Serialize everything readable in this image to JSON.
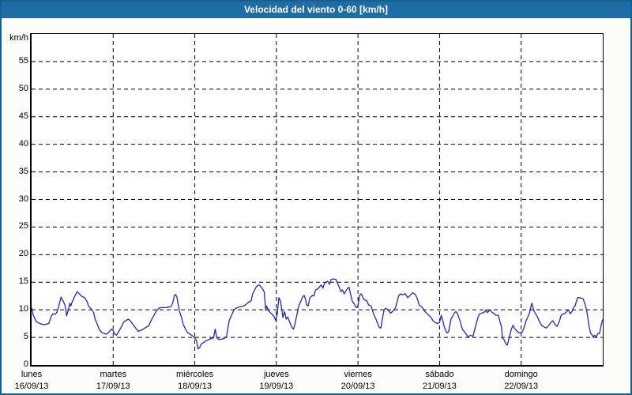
{
  "window": {
    "title": "Velocidad del viento 0-60 [km/h]"
  },
  "colors": {
    "titlebar_bg": "#1e6da4",
    "outer_border": "#16608f",
    "page_background": "#fcfdf8",
    "plot_background": "#ffffff",
    "grid": "#000000",
    "axis": "#000000",
    "line": "#2128b4",
    "title_text": "#ffffff",
    "label_text": "#000000"
  },
  "chart_data": {
    "type": "line",
    "title": "Velocidad del viento 0-60 [km/h]",
    "y_unit_label": "km/h",
    "ylim": [
      0,
      60
    ],
    "y_ticks": [
      0,
      5,
      10,
      15,
      20,
      25,
      30,
      35,
      40,
      45,
      50,
      55
    ],
    "xlim_days": [
      0,
      7
    ],
    "grid": "dashed",
    "legend": "none",
    "x_days": [
      {
        "name": "lunes",
        "date": "16/09/13"
      },
      {
        "name": "martes",
        "date": "17/09/13"
      },
      {
        "name": "miércoles",
        "date": "18/09/13"
      },
      {
        "name": "jueves",
        "date": "19/09/13"
      },
      {
        "name": "viernes",
        "date": "20/09/13"
      },
      {
        "name": "sábado",
        "date": "21/09/13"
      },
      {
        "name": "domingo",
        "date": "22/09/13"
      }
    ],
    "series": [
      {
        "name": "velocidad del viento",
        "color": "#2128b4",
        "x_unit": "days from 16/09/13 00:00",
        "y_unit": "km/h",
        "points": [
          [
            0.0,
            10.4
          ],
          [
            0.02,
            9.0
          ],
          [
            0.06,
            7.8
          ],
          [
            0.09,
            7.6
          ],
          [
            0.12,
            7.4
          ],
          [
            0.16,
            7.3
          ],
          [
            0.18,
            7.4
          ],
          [
            0.21,
            7.5
          ],
          [
            0.24,
            8.8
          ],
          [
            0.26,
            9.3
          ],
          [
            0.29,
            9.2
          ],
          [
            0.31,
            9.6
          ],
          [
            0.33,
            10.5
          ],
          [
            0.36,
            12.3
          ],
          [
            0.39,
            11.5
          ],
          [
            0.41,
            10.8
          ],
          [
            0.43,
            8.9
          ],
          [
            0.45,
            10.0
          ],
          [
            0.47,
            11.2
          ],
          [
            0.48,
            10.7
          ],
          [
            0.5,
            11.5
          ],
          [
            0.53,
            12.5
          ],
          [
            0.56,
            13.3
          ],
          [
            0.59,
            12.8
          ],
          [
            0.62,
            12.4
          ],
          [
            0.65,
            12.2
          ],
          [
            0.68,
            11.5
          ],
          [
            0.7,
            10.6
          ],
          [
            0.73,
            10.2
          ],
          [
            0.76,
            9.5
          ],
          [
            0.78,
            8.2
          ],
          [
            0.8,
            7.6
          ],
          [
            0.83,
            6.4
          ],
          [
            0.86,
            5.9
          ],
          [
            0.89,
            5.7
          ],
          [
            0.92,
            5.6
          ],
          [
            0.95,
            6.0
          ],
          [
            0.98,
            6.5
          ],
          [
            1.0,
            6.2
          ],
          [
            1.02,
            5.6
          ],
          [
            1.04,
            5.4
          ],
          [
            1.07,
            6.1
          ],
          [
            1.11,
            7.2
          ],
          [
            1.13,
            7.8
          ],
          [
            1.16,
            8.1
          ],
          [
            1.19,
            8.3
          ],
          [
            1.22,
            7.8
          ],
          [
            1.25,
            7.2
          ],
          [
            1.28,
            6.6
          ],
          [
            1.31,
            6.1
          ],
          [
            1.34,
            6.3
          ],
          [
            1.38,
            6.6
          ],
          [
            1.41,
            6.9
          ],
          [
            1.43,
            7.0
          ],
          [
            1.45,
            7.6
          ],
          [
            1.47,
            8.2
          ],
          [
            1.5,
            9.0
          ],
          [
            1.53,
            9.8
          ],
          [
            1.56,
            10.3
          ],
          [
            1.59,
            10.4
          ],
          [
            1.65,
            10.4
          ],
          [
            1.68,
            10.5
          ],
          [
            1.71,
            10.6
          ],
          [
            1.73,
            11.3
          ],
          [
            1.75,
            12.6
          ],
          [
            1.76,
            12.8
          ],
          [
            1.78,
            12.4
          ],
          [
            1.81,
            9.9
          ],
          [
            1.84,
            8.5
          ],
          [
            1.86,
            7.3
          ],
          [
            1.89,
            6.4
          ],
          [
            1.91,
            5.9
          ],
          [
            1.94,
            5.6
          ],
          [
            1.97,
            5.3
          ],
          [
            2.0,
            4.9
          ],
          [
            2.02,
            4.5
          ],
          [
            2.04,
            2.9
          ],
          [
            2.06,
            3.2
          ],
          [
            2.08,
            3.8
          ],
          [
            2.11,
            4.1
          ],
          [
            2.14,
            4.4
          ],
          [
            2.17,
            4.6
          ],
          [
            2.2,
            4.8
          ],
          [
            2.23,
            4.9
          ],
          [
            2.25,
            6.5
          ],
          [
            2.27,
            4.9
          ],
          [
            2.3,
            4.6
          ],
          [
            2.33,
            4.7
          ],
          [
            2.36,
            4.8
          ],
          [
            2.39,
            5.2
          ],
          [
            2.4,
            6.2
          ],
          [
            2.42,
            8.0
          ],
          [
            2.45,
            9.0
          ],
          [
            2.48,
            10.0
          ],
          [
            2.51,
            10.3
          ],
          [
            2.54,
            10.5
          ],
          [
            2.57,
            10.6
          ],
          [
            2.6,
            10.7
          ],
          [
            2.63,
            11.0
          ],
          [
            2.66,
            11.4
          ],
          [
            2.69,
            11.6
          ],
          [
            2.71,
            12.9
          ],
          [
            2.74,
            13.8
          ],
          [
            2.76,
            14.3
          ],
          [
            2.79,
            14.5
          ],
          [
            2.82,
            14.0
          ],
          [
            2.85,
            13.3
          ],
          [
            2.87,
            9.9
          ],
          [
            2.88,
            10.7
          ],
          [
            2.91,
            9.7
          ],
          [
            2.94,
            9.3
          ],
          [
            2.97,
            8.8
          ],
          [
            2.99,
            8.1
          ],
          [
            3.01,
            9.2
          ],
          [
            3.03,
            12.2
          ],
          [
            3.05,
            11.6
          ],
          [
            3.07,
            9.7
          ],
          [
            3.08,
            8.6
          ],
          [
            3.1,
            9.7
          ],
          [
            3.12,
            8.3
          ],
          [
            3.14,
            8.7
          ],
          [
            3.17,
            7.5
          ],
          [
            3.19,
            6.8
          ],
          [
            3.21,
            6.5
          ],
          [
            3.23,
            7.5
          ],
          [
            3.24,
            8.3
          ],
          [
            3.26,
            9.7
          ],
          [
            3.27,
            10.5
          ],
          [
            3.29,
            11.2
          ],
          [
            3.32,
            12.3
          ],
          [
            3.34,
            12.6
          ],
          [
            3.36,
            11.8
          ],
          [
            3.37,
            10.9
          ],
          [
            3.39,
            10.7
          ],
          [
            3.41,
            12.2
          ],
          [
            3.44,
            12.6
          ],
          [
            3.46,
            12.5
          ],
          [
            3.48,
            13.6
          ],
          [
            3.51,
            13.8
          ],
          [
            3.53,
            14.2
          ],
          [
            3.55,
            14.5
          ],
          [
            3.57,
            13.9
          ],
          [
            3.59,
            14.8
          ],
          [
            3.61,
            15.0
          ],
          [
            3.63,
            15.2
          ],
          [
            3.65,
            14.6
          ],
          [
            3.67,
            15.5
          ],
          [
            3.7,
            15.6
          ],
          [
            3.73,
            15.5
          ],
          [
            3.75,
            14.8
          ],
          [
            3.77,
            14.1
          ],
          [
            3.79,
            13.3
          ],
          [
            3.81,
            13.6
          ],
          [
            3.83,
            12.9
          ],
          [
            3.85,
            13.4
          ],
          [
            3.87,
            13.8
          ],
          [
            3.89,
            14.1
          ],
          [
            3.91,
            12.8
          ],
          [
            3.93,
            11.6
          ],
          [
            3.96,
            10.9
          ],
          [
            3.98,
            10.4
          ],
          [
            4.0,
            10.7
          ],
          [
            4.02,
            12.6
          ],
          [
            4.04,
            12.9
          ],
          [
            4.07,
            11.9
          ],
          [
            4.11,
            11.6
          ],
          [
            4.13,
            10.9
          ],
          [
            4.16,
            10.7
          ],
          [
            4.19,
            9.3
          ],
          [
            4.22,
            8.3
          ],
          [
            4.26,
            6.8
          ],
          [
            4.28,
            6.7
          ],
          [
            4.31,
            9.3
          ],
          [
            4.32,
            10.0
          ],
          [
            4.34,
            10.3
          ],
          [
            4.36,
            10.1
          ],
          [
            4.4,
            9.4
          ],
          [
            4.43,
            9.8
          ],
          [
            4.46,
            10.4
          ],
          [
            4.5,
            12.6
          ],
          [
            4.52,
            12.9
          ],
          [
            4.54,
            12.7
          ],
          [
            4.58,
            12.9
          ],
          [
            4.61,
            12.2
          ],
          [
            4.64,
            12.6
          ],
          [
            4.67,
            13.1
          ],
          [
            4.7,
            12.8
          ],
          [
            4.72,
            12.3
          ],
          [
            4.75,
            10.9
          ],
          [
            4.79,
            10.4
          ],
          [
            4.82,
            9.7
          ],
          [
            4.85,
            9.3
          ],
          [
            4.89,
            8.7
          ],
          [
            4.92,
            8.0
          ],
          [
            4.94,
            7.8
          ],
          [
            4.97,
            7.5
          ],
          [
            5.0,
            7.7
          ],
          [
            5.02,
            9.0
          ],
          [
            5.04,
            8.0
          ],
          [
            5.06,
            6.8
          ],
          [
            5.09,
            5.8
          ],
          [
            5.11,
            6.0
          ],
          [
            5.14,
            8.3
          ],
          [
            5.18,
            9.4
          ],
          [
            5.2,
            9.7
          ],
          [
            5.22,
            9.3
          ],
          [
            5.25,
            8.0
          ],
          [
            5.28,
            6.5
          ],
          [
            5.32,
            5.7
          ],
          [
            5.35,
            5.1
          ],
          [
            5.38,
            5.4
          ],
          [
            5.41,
            5.2
          ],
          [
            5.43,
            6.4
          ],
          [
            5.47,
            8.6
          ],
          [
            5.49,
            9.3
          ],
          [
            5.52,
            9.4
          ],
          [
            5.55,
            9.6
          ],
          [
            5.57,
            10.0
          ],
          [
            5.58,
            9.5
          ],
          [
            5.6,
            9.7
          ],
          [
            5.62,
            10.0
          ],
          [
            5.64,
            9.6
          ],
          [
            5.67,
            9.3
          ],
          [
            5.69,
            9.0
          ],
          [
            5.72,
            9.0
          ],
          [
            5.76,
            6.8
          ],
          [
            5.77,
            4.9
          ],
          [
            5.79,
            4.6
          ],
          [
            5.81,
            3.9
          ],
          [
            5.83,
            3.6
          ],
          [
            5.86,
            5.4
          ],
          [
            5.88,
            6.5
          ],
          [
            5.9,
            7.2
          ],
          [
            5.91,
            6.8
          ],
          [
            5.95,
            6.1
          ],
          [
            5.98,
            5.8
          ],
          [
            6.01,
            5.9
          ],
          [
            6.03,
            6.5
          ],
          [
            6.06,
            8.0
          ],
          [
            6.1,
            9.3
          ],
          [
            6.13,
            11.2
          ],
          [
            6.16,
            9.7
          ],
          [
            6.2,
            8.7
          ],
          [
            6.22,
            8.0
          ],
          [
            6.25,
            7.2
          ],
          [
            6.29,
            6.8
          ],
          [
            6.31,
            6.7
          ],
          [
            6.34,
            7.2
          ],
          [
            6.37,
            7.8
          ],
          [
            6.39,
            8.0
          ],
          [
            6.42,
            7.2
          ],
          [
            6.44,
            7.0
          ],
          [
            6.47,
            8.0
          ],
          [
            6.49,
            9.0
          ],
          [
            6.52,
            9.3
          ],
          [
            6.54,
            9.4
          ],
          [
            6.56,
            9.7
          ],
          [
            6.58,
            10.0
          ],
          [
            6.6,
            9.3
          ],
          [
            6.62,
            9.6
          ],
          [
            6.64,
            10.4
          ],
          [
            6.66,
            10.7
          ],
          [
            6.69,
            12.2
          ],
          [
            6.72,
            12.2
          ],
          [
            6.74,
            12.1
          ],
          [
            6.76,
            12.0
          ],
          [
            6.79,
            10.7
          ],
          [
            6.81,
            9.3
          ],
          [
            6.83,
            7.2
          ],
          [
            6.85,
            5.8
          ],
          [
            6.87,
            5.4
          ],
          [
            6.88,
            5.1
          ],
          [
            6.9,
            5.4
          ],
          [
            6.92,
            5.1
          ],
          [
            6.94,
            5.7
          ],
          [
            6.96,
            5.7
          ],
          [
            6.98,
            7.2
          ],
          [
            7.0,
            8.3
          ]
        ]
      }
    ]
  }
}
